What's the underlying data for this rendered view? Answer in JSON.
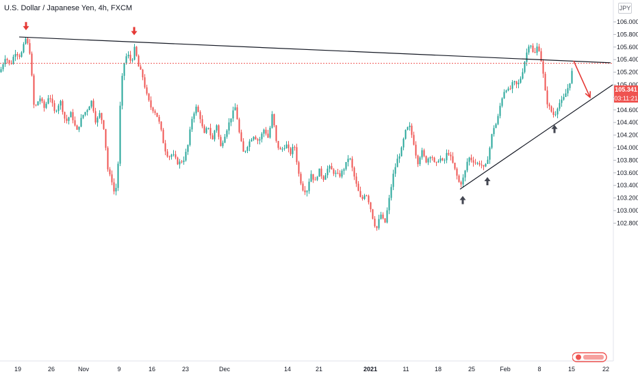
{
  "header": {
    "symbol_title": "U.S. Dollar / Japanese Yen, 4h, FXCM",
    "currency": "JPY"
  },
  "price_marker": {
    "last_price": "105.341",
    "countdown": "03:11:21",
    "color": "#ef5350"
  },
  "colors": {
    "up": "#26a69a",
    "down": "#ef5350",
    "arrow_down": "#e53935",
    "arrow_up": "#434651",
    "trendline": "#131722"
  },
  "chart_data": {
    "type": "candlestick",
    "title": "U.S. Dollar / Japanese Yen, 4h, FXCM",
    "ylim": [
      102.72,
      106.22
    ],
    "yticks": [
      "106.000",
      "105.800",
      "105.600",
      "105.400",
      "105.200",
      "105.000",
      "104.800",
      "104.600",
      "104.400",
      "104.200",
      "104.000",
      "103.800",
      "103.600",
      "103.400",
      "103.200",
      "103.000",
      "102.800"
    ],
    "xticks": [
      "19",
      "26",
      "Nov",
      "9",
      "16",
      "23",
      "Dec",
      "14",
      "21",
      "2021",
      "11",
      "18",
      "25",
      "Feb",
      "8",
      "15",
      "22"
    ],
    "price_path": [
      [
        0,
        105.2
      ],
      [
        8,
        105.45
      ],
      [
        15,
        105.3
      ],
      [
        22,
        105.52
      ],
      [
        30,
        105.45
      ],
      [
        38,
        105.75
      ],
      [
        44,
        105.5
      ],
      [
        50,
        104.6
      ],
      [
        58,
        104.8
      ],
      [
        65,
        104.62
      ],
      [
        72,
        104.85
      ],
      [
        80,
        104.55
      ],
      [
        88,
        104.75
      ],
      [
        96,
        104.4
      ],
      [
        104,
        104.55
      ],
      [
        112,
        104.25
      ],
      [
        120,
        104.5
      ],
      [
        128,
        104.62
      ],
      [
        134,
        104.75
      ],
      [
        140,
        104.4
      ],
      [
        146,
        104.55
      ],
      [
        152,
        104.3
      ],
      [
        158,
        103.6
      ],
      [
        163,
        103.5
      ],
      [
        168,
        103.22
      ],
      [
        172,
        103.6
      ],
      [
        176,
        104.8
      ],
      [
        180,
        105.3
      ],
      [
        186,
        105.5
      ],
      [
        192,
        105.35
      ],
      [
        197,
        105.6
      ],
      [
        202,
        105.3
      ],
      [
        208,
        105.15
      ],
      [
        214,
        104.85
      ],
      [
        220,
        104.65
      ],
      [
        228,
        104.55
      ],
      [
        234,
        104.35
      ],
      [
        240,
        104.0
      ],
      [
        246,
        103.85
      ],
      [
        252,
        103.9
      ],
      [
        260,
        103.75
      ],
      [
        268,
        103.8
      ],
      [
        274,
        104.0
      ],
      [
        280,
        104.45
      ],
      [
        286,
        104.65
      ],
      [
        292,
        104.5
      ],
      [
        298,
        104.2
      ],
      [
        304,
        104.35
      ],
      [
        310,
        104.1
      ],
      [
        316,
        104.4
      ],
      [
        322,
        104.0
      ],
      [
        330,
        104.25
      ],
      [
        338,
        104.5
      ],
      [
        344,
        104.65
      ],
      [
        350,
        104.2
      ],
      [
        356,
        103.9
      ],
      [
        362,
        104.05
      ],
      [
        370,
        104.2
      ],
      [
        378,
        104.1
      ],
      [
        386,
        104.3
      ],
      [
        392,
        104.15
      ],
      [
        398,
        104.55
      ],
      [
        404,
        104.05
      ],
      [
        410,
        103.95
      ],
      [
        418,
        104.05
      ],
      [
        424,
        103.9
      ],
      [
        430,
        104.05
      ],
      [
        436,
        103.6
      ],
      [
        442,
        103.35
      ],
      [
        448,
        103.3
      ],
      [
        454,
        103.6
      ],
      [
        460,
        103.45
      ],
      [
        466,
        103.65
      ],
      [
        472,
        103.5
      ],
      [
        480,
        103.7
      ],
      [
        488,
        103.6
      ],
      [
        496,
        103.55
      ],
      [
        504,
        103.7
      ],
      [
        510,
        103.88
      ],
      [
        516,
        103.6
      ],
      [
        522,
        103.35
      ],
      [
        528,
        103.15
      ],
      [
        534,
        103.3
      ],
      [
        540,
        103.1
      ],
      [
        546,
        102.82
      ],
      [
        550,
        102.7
      ],
      [
        556,
        102.95
      ],
      [
        562,
        102.78
      ],
      [
        568,
        103.15
      ],
      [
        574,
        103.55
      ],
      [
        580,
        103.8
      ],
      [
        586,
        103.95
      ],
      [
        592,
        104.25
      ],
      [
        598,
        104.35
      ],
      [
        604,
        104.1
      ],
      [
        610,
        103.75
      ],
      [
        616,
        103.95
      ],
      [
        622,
        103.78
      ],
      [
        630,
        103.9
      ],
      [
        636,
        103.7
      ],
      [
        642,
        103.85
      ],
      [
        648,
        103.75
      ],
      [
        654,
        103.95
      ],
      [
        660,
        103.8
      ],
      [
        666,
        103.6
      ],
      [
        672,
        103.4
      ],
      [
        678,
        103.55
      ],
      [
        684,
        103.85
      ],
      [
        690,
        103.8
      ],
      [
        696,
        103.75
      ],
      [
        702,
        103.75
      ],
      [
        708,
        103.65
      ],
      [
        714,
        103.9
      ],
      [
        720,
        104.3
      ],
      [
        726,
        104.4
      ],
      [
        732,
        104.75
      ],
      [
        738,
        104.95
      ],
      [
        744,
        104.9
      ],
      [
        750,
        105.05
      ],
      [
        756,
        104.98
      ],
      [
        762,
        105.15
      ],
      [
        768,
        105.45
      ],
      [
        774,
        105.7
      ],
      [
        780,
        105.45
      ],
      [
        786,
        105.65
      ],
      [
        792,
        105.3
      ],
      [
        798,
        104.75
      ],
      [
        804,
        104.6
      ],
      [
        810,
        104.5
      ],
      [
        816,
        104.7
      ],
      [
        822,
        104.75
      ],
      [
        828,
        104.9
      ],
      [
        834,
        105.1
      ],
      [
        838,
        105.38
      ]
    ],
    "trendlines": [
      {
        "name": "resistance",
        "points": [
          [
            28,
            105.76
          ],
          [
            892,
            105.35
          ]
        ]
      },
      {
        "name": "support",
        "points": [
          [
            672,
            103.34
          ],
          [
            895,
            105.0
          ]
        ]
      },
      {
        "name": "projection",
        "points": [
          [
            838,
            105.38
          ],
          [
            862,
            104.8
          ]
        ]
      }
    ],
    "markers": [
      {
        "type": "arrow-down",
        "x": 38,
        "y": 105.9
      },
      {
        "type": "arrow-down",
        "x": 196,
        "y": 105.82
      },
      {
        "type": "arrow-up",
        "x": 676,
        "y": 103.2
      },
      {
        "type": "arrow-up",
        "x": 712,
        "y": 103.5
      },
      {
        "type": "arrow-up",
        "x": 810,
        "y": 104.33
      }
    ]
  }
}
